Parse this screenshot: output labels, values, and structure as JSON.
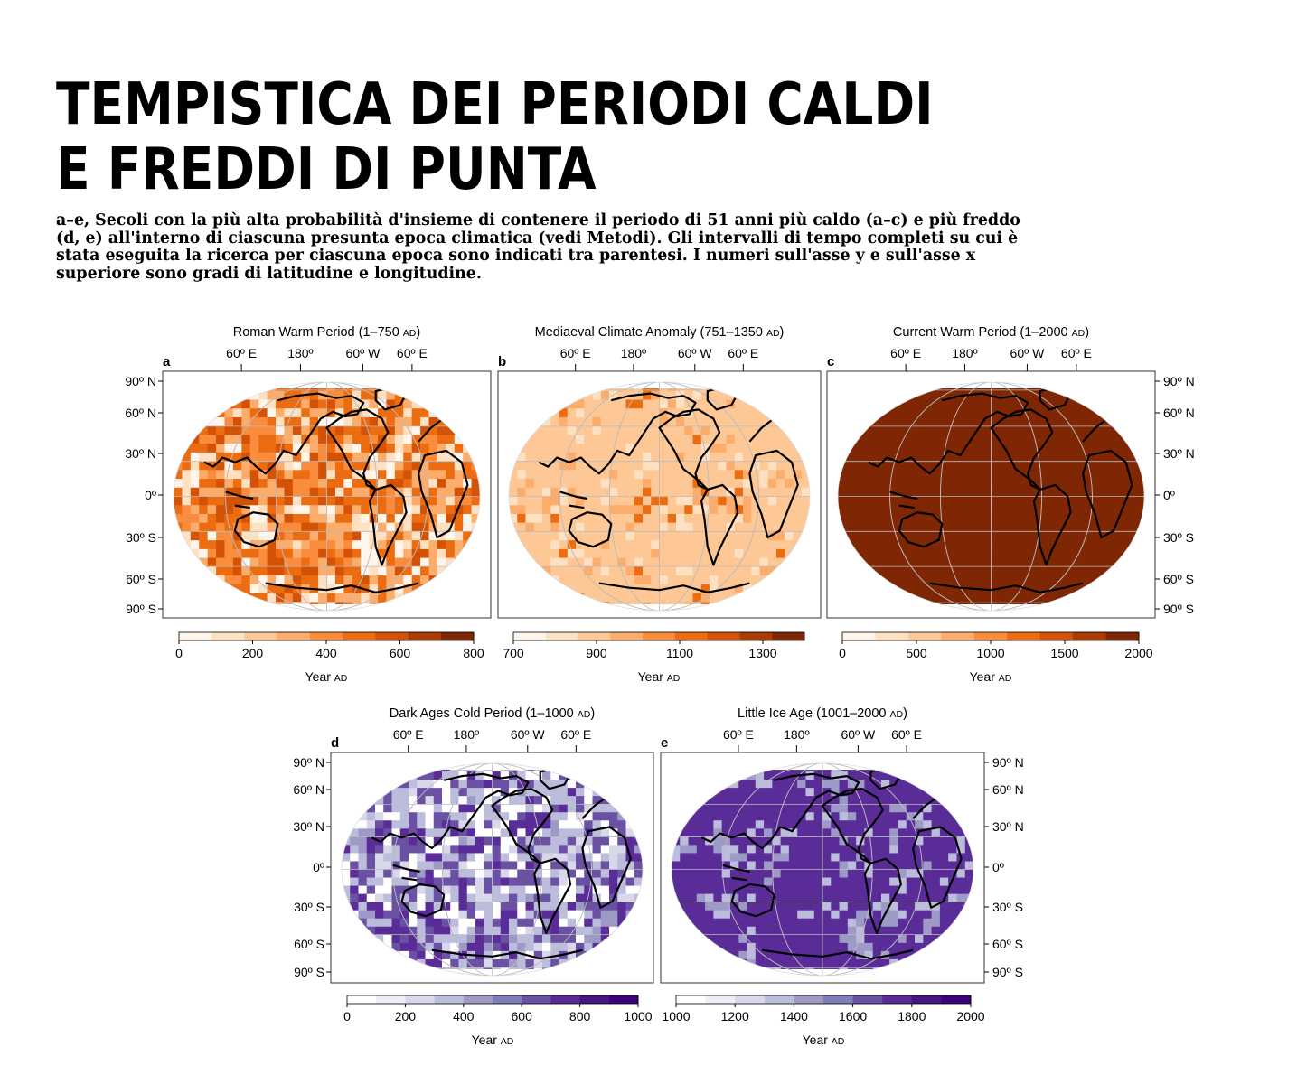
{
  "header": {
    "title_lines": [
      "TEMPISTICA DEI PERIODI CALDI",
      "E FREDDI DI PUNTA"
    ],
    "caption_lines": [
      "a–e, Secoli con la più alta probabilità d'insieme di contenere il periodo di 51 anni più caldo (a–c) e più freddo",
      "(d, e) all'interno di ciascuna presunta epoca climatica (vedi Metodi). Gli intervalli di tempo completi su cui è",
      "stata eseguita la ricerca per ciascuna epoca sono indicati tra parentesi. I numeri sull'asse y e sull'asse x",
      "superiore sono gradi di latitudine e longitudine."
    ]
  },
  "colors": {
    "orange_scale": [
      "#fff5ea",
      "#fee0c2",
      "#fdc896",
      "#fdad6b",
      "#f98c3d",
      "#ec6c12",
      "#d45206",
      "#a83c03",
      "#7f2704"
    ],
    "purple_scale": [
      "#ffffff",
      "#efedf5",
      "#d9d8ea",
      "#bcbddc",
      "#9e9ac8",
      "#807dba",
      "#6a51a3",
      "#5a2c98",
      "#4a1486",
      "#3f007d"
    ],
    "coastline": "#000000",
    "graticule": "#bbbbbb"
  },
  "axes": {
    "lon_ticks": [
      "60º E",
      "180º",
      "60º W",
      "60º E"
    ],
    "lat_ticks": [
      "90º N",
      "60º N",
      "30º N",
      "0º",
      "30º S",
      "60º S",
      "90º S"
    ]
  },
  "panels": [
    {
      "id": "a",
      "letter": "a",
      "title_main": "Roman Warm Period (1–750 ",
      "title_unit": "AD",
      "title_close": ")",
      "scale": "orange",
      "map_style": "mixed-orange",
      "lat_labels": "left",
      "colorbar": {
        "min": 0,
        "max": 800,
        "ticks": [
          "0",
          "200",
          "400",
          "600",
          "800"
        ],
        "label": "Year ",
        "label_unit": "AD"
      }
    },
    {
      "id": "b",
      "letter": "b",
      "title_main": "Mediaeval Climate Anomaly (751–1350 ",
      "title_unit": "AD",
      "title_close": ")",
      "scale": "orange",
      "map_style": "light-orange",
      "lat_labels": "none",
      "colorbar": {
        "min": 700,
        "max": 1400,
        "ticks": [
          "700",
          "900",
          "1100",
          "1300"
        ],
        "label": "Year ",
        "label_unit": "AD"
      }
    },
    {
      "id": "c",
      "letter": "c",
      "title_main": "Current Warm Period (1–2000 ",
      "title_unit": "AD",
      "title_close": ")",
      "scale": "orange",
      "map_style": "dark-orange",
      "lat_labels": "right",
      "colorbar": {
        "min": 0,
        "max": 2000,
        "ticks": [
          "0",
          "500",
          "1000",
          "1500",
          "2000"
        ],
        "label": "Year ",
        "label_unit": "AD"
      }
    },
    {
      "id": "d",
      "letter": "d",
      "title_main": "Dark Ages Cold Period (1–1000 ",
      "title_unit": "AD",
      "title_close": ")",
      "scale": "purple",
      "map_style": "mixed-purple",
      "lat_labels": "left",
      "colorbar": {
        "min": 0,
        "max": 1000,
        "ticks": [
          "0",
          "200",
          "400",
          "600",
          "800",
          "1000"
        ],
        "label": "Year ",
        "label_unit": "AD"
      }
    },
    {
      "id": "e",
      "letter": "e",
      "title_main": "Little Ice Age (1001–2000 ",
      "title_unit": "AD",
      "title_close": ")",
      "scale": "purple",
      "map_style": "dark-purple",
      "lat_labels": "right",
      "colorbar": {
        "min": 1000,
        "max": 2000,
        "ticks": [
          "1000",
          "1200",
          "1400",
          "1600",
          "1800",
          "2000"
        ],
        "label": "Year ",
        "label_unit": "AD"
      }
    }
  ]
}
